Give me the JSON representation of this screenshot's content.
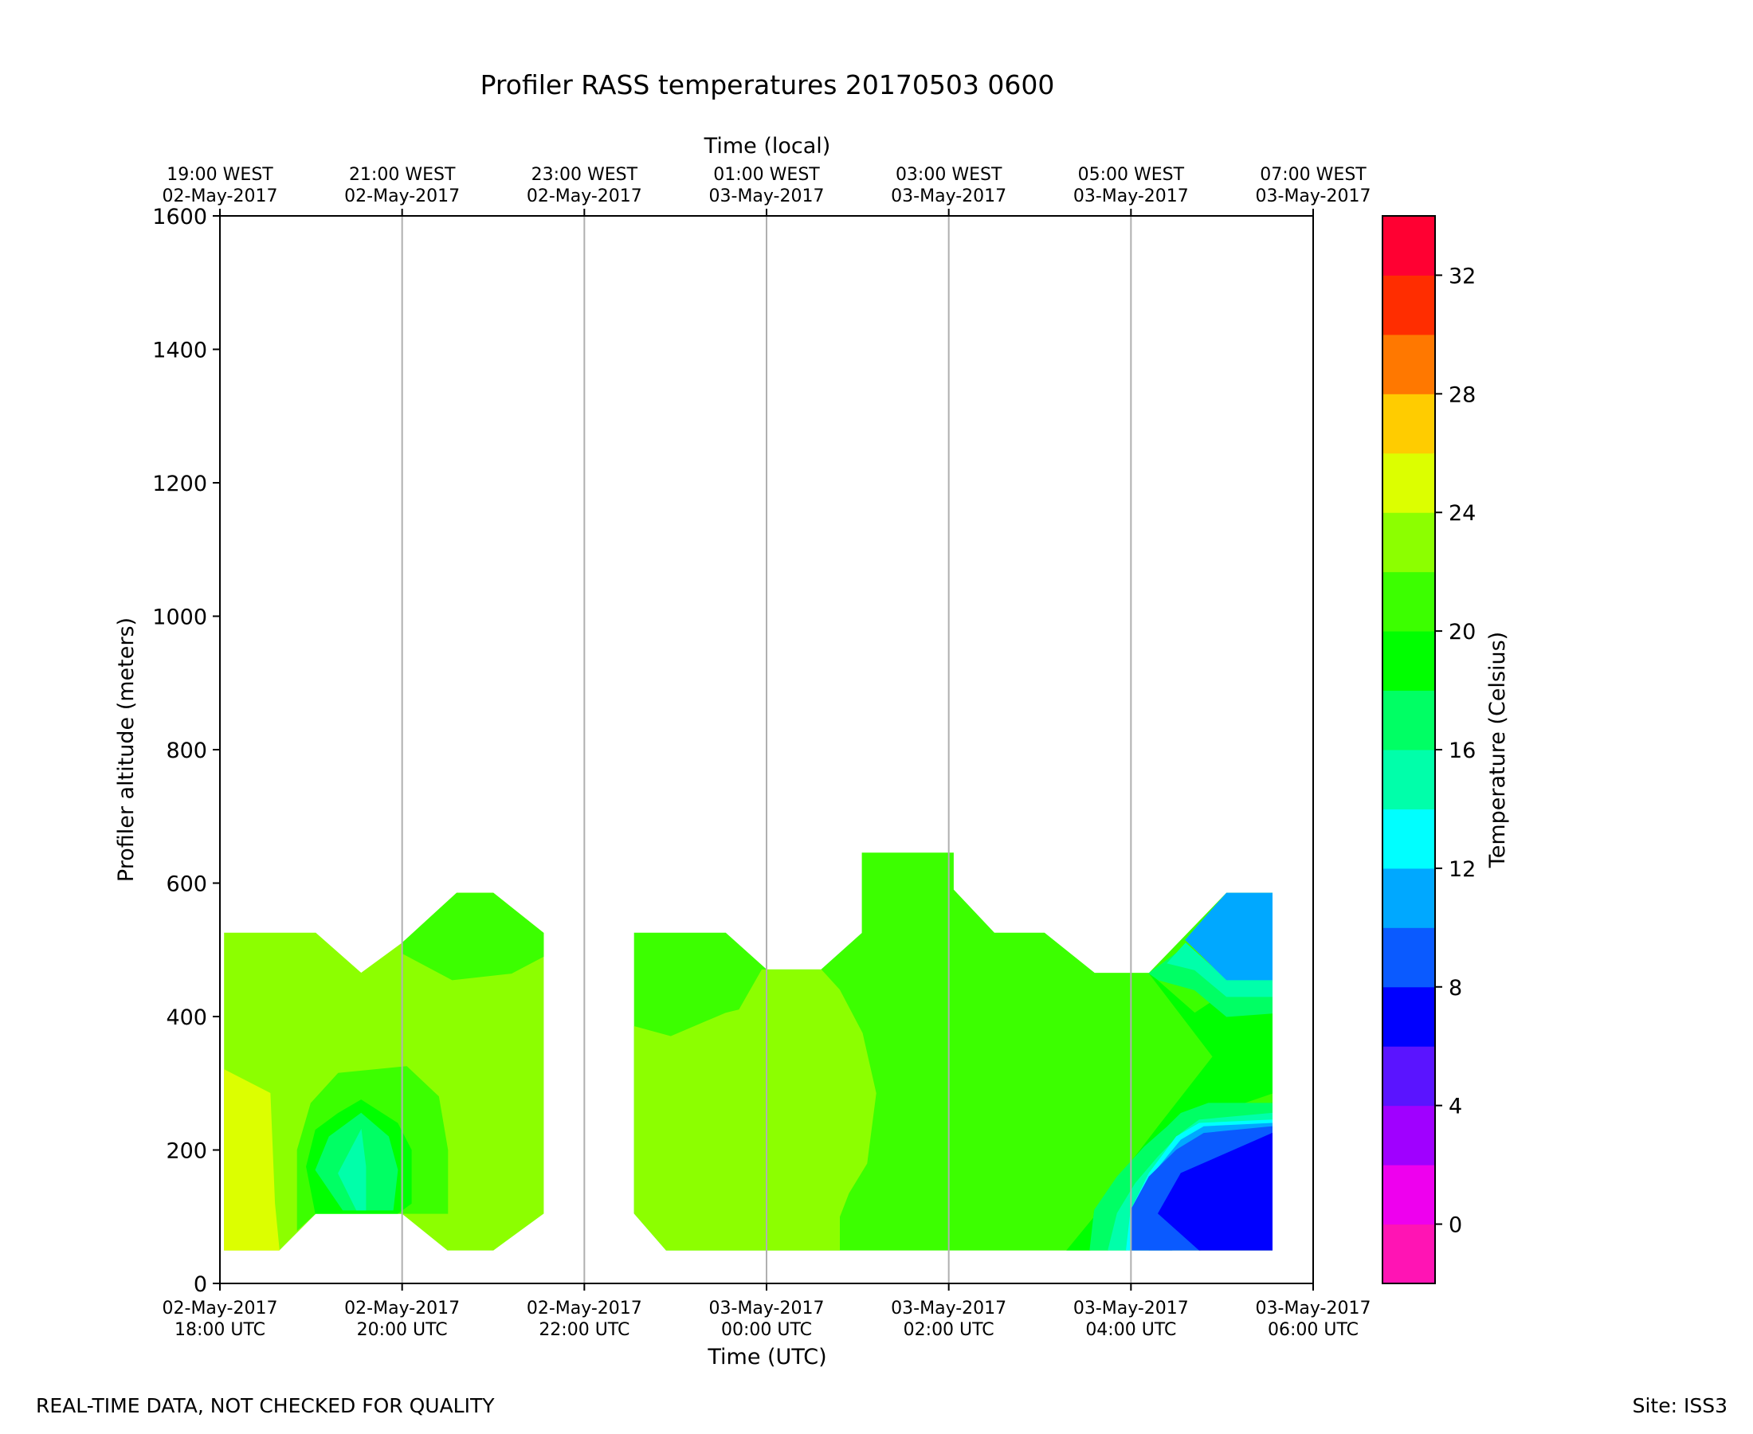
{
  "footer": {
    "left_note": "REAL-TIME DATA, NOT CHECKED FOR QUALITY",
    "right_note": "Site: ISS3"
  },
  "chart_data": {
    "type": "heatmap",
    "title": "Profiler RASS temperatures 20170503 0600",
    "xlabel": "Time (UTC)",
    "xlabel_top": "Time (local)",
    "ylabel": "Profiler altitude (meters)",
    "ylim": [
      0,
      1600
    ],
    "yticks": [
      0,
      200,
      400,
      600,
      800,
      1000,
      1200,
      1400,
      1600
    ],
    "x_hours_utc": [
      18,
      20,
      22,
      24,
      26,
      28,
      30
    ],
    "x_ticks_utc": [
      {
        "date": "02-May-2017",
        "time": "18:00 UTC"
      },
      {
        "date": "02-May-2017",
        "time": "20:00 UTC"
      },
      {
        "date": "02-May-2017",
        "time": "22:00 UTC"
      },
      {
        "date": "03-May-2017",
        "time": "00:00 UTC"
      },
      {
        "date": "03-May-2017",
        "time": "02:00 UTC"
      },
      {
        "date": "03-May-2017",
        "time": "04:00 UTC"
      },
      {
        "date": "03-May-2017",
        "time": "06:00 UTC"
      }
    ],
    "x_ticks_local": [
      {
        "time": "19:00 WEST",
        "date": "02-May-2017"
      },
      {
        "time": "21:00 WEST",
        "date": "02-May-2017"
      },
      {
        "time": "23:00 WEST",
        "date": "02-May-2017"
      },
      {
        "time": "01:00 WEST",
        "date": "03-May-2017"
      },
      {
        "time": "03:00 WEST",
        "date": "03-May-2017"
      },
      {
        "time": "05:00 WEST",
        "date": "03-May-2017"
      },
      {
        "time": "07:00 WEST",
        "date": "03-May-2017"
      }
    ],
    "grid": "vertical lines at x ticks",
    "colorbar": {
      "label": "Temperature (Celsius)",
      "levels": [
        -2,
        0,
        2,
        4,
        6,
        8,
        10,
        12,
        14,
        16,
        18,
        20,
        22,
        24,
        26,
        28,
        30,
        32,
        34
      ],
      "colors": [
        "#ff14b4",
        "#ee00ee",
        "#a000ff",
        "#5a14ff",
        "#0000ff",
        "#0a5aff",
        "#00a8ff",
        "#00ffff",
        "#00ffaa",
        "#00ff64",
        "#00ff00",
        "#3cff00",
        "#8cff00",
        "#dcff00",
        "#ffcc00",
        "#ff7800",
        "#ff2d00",
        "#ff0032"
      ],
      "tick_values": [
        0,
        4,
        8,
        12,
        16,
        20,
        24,
        28,
        32
      ],
      "tick_labels": [
        "0",
        "4",
        "8",
        "12",
        "16",
        "20",
        "24",
        "28",
        "32"
      ]
    },
    "regions": [
      {
        "temp_class": "22-24",
        "color": "#8cff00",
        "points": [
          [
            18.05,
            50
          ],
          [
            18.05,
            525
          ],
          [
            19.05,
            525
          ],
          [
            19.55,
            465
          ],
          [
            20.0,
            510
          ],
          [
            20.6,
            585
          ],
          [
            21.0,
            585
          ],
          [
            21.55,
            525
          ],
          [
            21.55,
            105
          ],
          [
            21.0,
            50
          ],
          [
            20.5,
            50
          ],
          [
            20.0,
            105
          ],
          [
            19.05,
            105
          ],
          [
            18.65,
            50
          ]
        ]
      },
      {
        "temp_class": "20-22",
        "color": "#3cff00",
        "points": [
          [
            20.0,
            510
          ],
          [
            20.6,
            585
          ],
          [
            21.0,
            585
          ],
          [
            21.55,
            525
          ],
          [
            21.55,
            490
          ],
          [
            21.2,
            465
          ],
          [
            20.55,
            455
          ],
          [
            20.0,
            495
          ]
        ]
      },
      {
        "temp_class": "24-26",
        "color": "#dcff00",
        "points": [
          [
            18.05,
            50
          ],
          [
            18.05,
            320
          ],
          [
            18.55,
            285
          ],
          [
            18.6,
            120
          ],
          [
            18.65,
            50
          ]
        ]
      },
      {
        "temp_class": "20-22",
        "color": "#3cff00",
        "points": [
          [
            18.85,
            80
          ],
          [
            18.85,
            200
          ],
          [
            19.0,
            270
          ],
          [
            19.3,
            315
          ],
          [
            20.05,
            325
          ],
          [
            20.4,
            280
          ],
          [
            20.5,
            200
          ],
          [
            20.5,
            105
          ],
          [
            20.0,
            105
          ],
          [
            19.05,
            105
          ]
        ]
      },
      {
        "temp_class": "18-20",
        "color": "#00ff00",
        "points": [
          [
            18.95,
            175
          ],
          [
            19.05,
            230
          ],
          [
            19.3,
            255
          ],
          [
            19.55,
            275
          ],
          [
            19.95,
            240
          ],
          [
            20.1,
            200
          ],
          [
            20.1,
            120
          ],
          [
            19.95,
            105
          ],
          [
            19.05,
            105
          ]
        ]
      },
      {
        "temp_class": "16-18",
        "color": "#00ff64",
        "points": [
          [
            19.05,
            170
          ],
          [
            19.2,
            220
          ],
          [
            19.55,
            255
          ],
          [
            19.85,
            220
          ],
          [
            19.95,
            170
          ],
          [
            19.9,
            110
          ],
          [
            19.35,
            110
          ]
        ]
      },
      {
        "temp_class": "14-16",
        "color": "#00ffaa",
        "points": [
          [
            19.3,
            165
          ],
          [
            19.55,
            230
          ],
          [
            19.6,
            175
          ],
          [
            19.6,
            110
          ],
          [
            19.5,
            110
          ]
        ]
      },
      {
        "temp_class": "20-22",
        "color": "#3cff00",
        "points": [
          [
            22.55,
            525
          ],
          [
            23.55,
            525
          ],
          [
            24.0,
            470
          ],
          [
            24.6,
            470
          ],
          [
            25.05,
            525
          ],
          [
            25.05,
            645
          ],
          [
            26.05,
            645
          ],
          [
            26.05,
            590
          ],
          [
            26.5,
            525
          ],
          [
            27.05,
            525
          ],
          [
            27.6,
            465
          ],
          [
            28.2,
            465
          ],
          [
            29.05,
            585
          ],
          [
            29.55,
            585
          ],
          [
            29.55,
            50
          ],
          [
            22.9,
            50
          ],
          [
            22.55,
            105
          ]
        ]
      },
      {
        "temp_class": "22-24",
        "color": "#8cff00",
        "points": [
          [
            22.55,
            105
          ],
          [
            22.55,
            385
          ],
          [
            22.95,
            370
          ],
          [
            23.55,
            405
          ],
          [
            23.7,
            410
          ],
          [
            23.95,
            470
          ],
          [
            24.6,
            470
          ],
          [
            24.8,
            440
          ],
          [
            25.05,
            375
          ],
          [
            25.2,
            285
          ],
          [
            25.1,
            180
          ],
          [
            24.9,
            135
          ],
          [
            24.8,
            100
          ],
          [
            24.8,
            50
          ],
          [
            22.9,
            50
          ]
        ]
      },
      {
        "temp_class": "18-20",
        "color": "#00ff00",
        "points": [
          [
            27.3,
            50
          ],
          [
            27.6,
            100
          ],
          [
            27.9,
            145
          ],
          [
            28.3,
            195
          ],
          [
            28.8,
            250
          ],
          [
            29.55,
            285
          ],
          [
            29.55,
            435
          ],
          [
            29.2,
            450
          ],
          [
            28.7,
            405
          ],
          [
            28.2,
            465
          ],
          [
            28.9,
            340
          ],
          [
            28.3,
            235
          ],
          [
            27.6,
            110
          ],
          [
            27.55,
            50
          ]
        ]
      },
      {
        "temp_class": "16-18",
        "color": "#00ff64",
        "points": [
          [
            27.55,
            50
          ],
          [
            27.6,
            110
          ],
          [
            27.85,
            160
          ],
          [
            28.15,
            205
          ],
          [
            28.4,
            235
          ],
          [
            28.55,
            255
          ],
          [
            28.85,
            270
          ],
          [
            29.55,
            270
          ],
          [
            29.55,
            235
          ],
          [
            28.7,
            235
          ],
          [
            28.6,
            160
          ],
          [
            27.75,
            50
          ]
        ]
      },
      {
        "temp_class": "14-16",
        "color": "#00ffaa",
        "points": [
          [
            27.75,
            50
          ],
          [
            27.85,
            105
          ],
          [
            28.05,
            150
          ],
          [
            28.3,
            190
          ],
          [
            28.55,
            225
          ],
          [
            28.75,
            245
          ],
          [
            29.55,
            255
          ],
          [
            29.55,
            230
          ],
          [
            28.6,
            225
          ],
          [
            28.5,
            165
          ],
          [
            27.95,
            50
          ]
        ]
      },
      {
        "temp_class": "12-14",
        "color": "#00ffff",
        "points": [
          [
            27.95,
            50
          ],
          [
            28.0,
            110
          ],
          [
            28.2,
            165
          ],
          [
            28.5,
            220
          ],
          [
            28.75,
            240
          ],
          [
            29.55,
            245
          ],
          [
            29.55,
            225
          ],
          [
            28.9,
            205
          ],
          [
            28.6,
            165
          ],
          [
            28.2,
            50
          ]
        ]
      },
      {
        "temp_class": "10-12",
        "color": "#00a8ff",
        "points": [
          [
            28.2,
            50
          ],
          [
            28.05,
            105
          ],
          [
            28.25,
            165
          ],
          [
            28.55,
            215
          ],
          [
            28.8,
            235
          ],
          [
            29.55,
            240
          ],
          [
            29.55,
            225
          ],
          [
            29.05,
            195
          ],
          [
            28.85,
            165
          ],
          [
            28.45,
            50
          ]
        ]
      },
      {
        "temp_class": "8-10",
        "color": "#0a5aff",
        "points": [
          [
            28.45,
            50
          ],
          [
            28.0,
            50
          ],
          [
            28.0,
            110
          ],
          [
            28.2,
            160
          ],
          [
            28.5,
            200
          ],
          [
            28.8,
            225
          ],
          [
            29.55,
            235
          ],
          [
            29.55,
            225
          ],
          [
            29.05,
            195
          ],
          [
            28.55,
            165
          ],
          [
            28.3,
            105
          ],
          [
            28.75,
            50
          ]
        ]
      },
      {
        "temp_class": "6-8",
        "color": "#0000ff",
        "points": [
          [
            28.75,
            50
          ],
          [
            28.3,
            105
          ],
          [
            28.55,
            165
          ],
          [
            29.05,
            195
          ],
          [
            29.55,
            225
          ],
          [
            29.55,
            50
          ]
        ]
      },
      {
        "temp_class": "16-18",
        "color": "#00ff64",
        "points": [
          [
            28.2,
            465
          ],
          [
            28.55,
            500
          ],
          [
            29.0,
            435
          ],
          [
            29.55,
            435
          ],
          [
            29.55,
            405
          ],
          [
            29.05,
            400
          ],
          [
            28.7,
            440
          ],
          [
            28.3,
            455
          ]
        ]
      },
      {
        "temp_class": "14-16",
        "color": "#00ffaa",
        "points": [
          [
            28.4,
            480
          ],
          [
            28.6,
            510
          ],
          [
            29.05,
            455
          ],
          [
            29.55,
            455
          ],
          [
            29.55,
            430
          ],
          [
            29.05,
            430
          ],
          [
            28.7,
            470
          ]
        ]
      },
      {
        "temp_class": "10-12",
        "color": "#00a8ff",
        "points": [
          [
            28.6,
            515
          ],
          [
            29.05,
            585
          ],
          [
            29.55,
            585
          ],
          [
            29.55,
            455
          ],
          [
            29.05,
            455
          ]
        ]
      }
    ]
  }
}
